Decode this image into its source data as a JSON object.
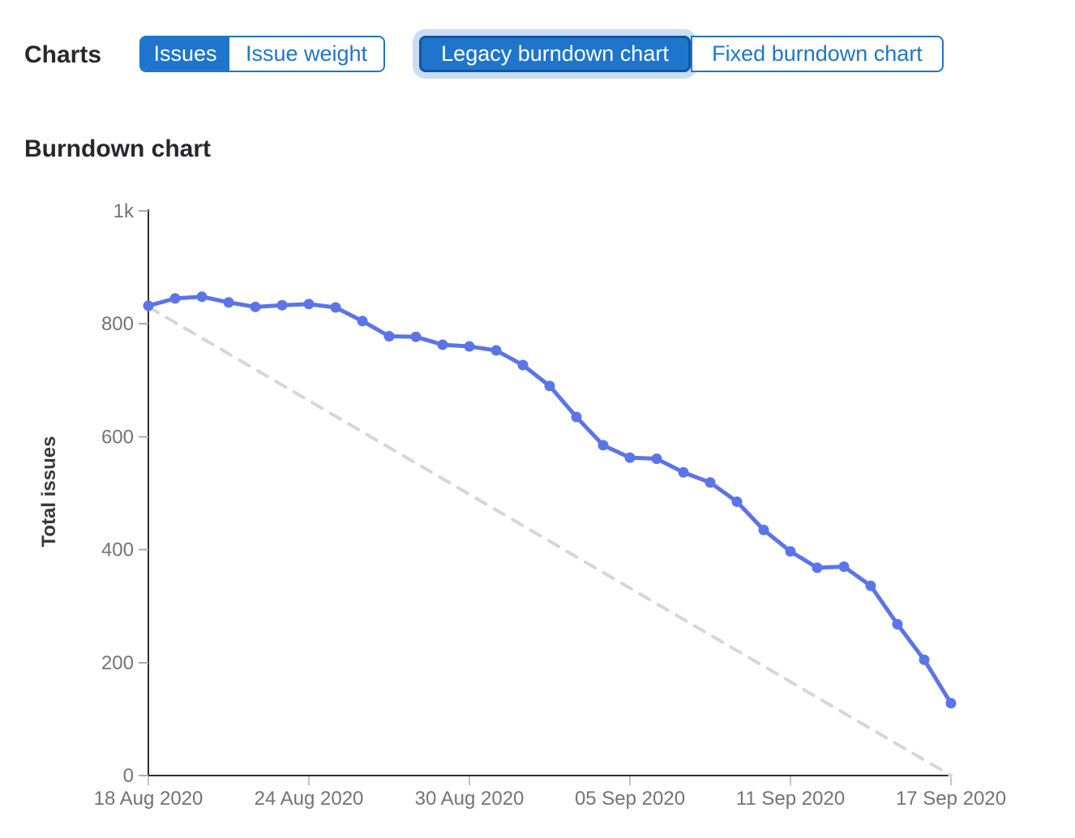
{
  "header": {
    "charts_label": "Charts",
    "metric_toggle": {
      "options": [
        {
          "label": "Issues",
          "selected": true
        },
        {
          "label": "Issue weight",
          "selected": false
        }
      ]
    },
    "type_toggle": {
      "options": [
        {
          "label": "Legacy burndown chart",
          "selected": true,
          "focused": true
        },
        {
          "label": "Fixed burndown chart",
          "selected": false
        }
      ]
    }
  },
  "section": {
    "title": "Burndown chart"
  },
  "colors": {
    "accent_blue": "#1f75cb",
    "selected_border": "#0d57a5",
    "focus_ring": "#c9ddf3",
    "series_line": "#5b74e8",
    "guideline": "#d6d6d6",
    "axis": "#2e2e33",
    "tick_text": "#737278",
    "heading_text": "#28272d",
    "ylabel_text": "#39383d"
  },
  "chart_data": {
    "type": "line",
    "title": "Burndown chart",
    "xlabel": "",
    "ylabel": "Total issues",
    "ylim": [
      0,
      1000
    ],
    "grid": false,
    "legend_position": "none",
    "y_ticks": [
      {
        "value": 0,
        "label": "0"
      },
      {
        "value": 200,
        "label": "200"
      },
      {
        "value": 400,
        "label": "400"
      },
      {
        "value": 600,
        "label": "600"
      },
      {
        "value": 800,
        "label": "800"
      },
      {
        "value": 1000,
        "label": "1k"
      }
    ],
    "x_tick_indices": [
      0,
      6,
      12,
      18,
      24,
      30
    ],
    "x_tick_labels": [
      "18 Aug 2020",
      "24 Aug 2020",
      "30 Aug 2020",
      "05 Sep 2020",
      "11 Sep 2020",
      "17 Sep 2020"
    ],
    "categories": [
      "18 Aug 2020",
      "19 Aug 2020",
      "20 Aug 2020",
      "21 Aug 2020",
      "22 Aug 2020",
      "23 Aug 2020",
      "24 Aug 2020",
      "25 Aug 2020",
      "26 Aug 2020",
      "27 Aug 2020",
      "28 Aug 2020",
      "29 Aug 2020",
      "30 Aug 2020",
      "31 Aug 2020",
      "01 Sep 2020",
      "02 Sep 2020",
      "03 Sep 2020",
      "04 Sep 2020",
      "05 Sep 2020",
      "06 Sep 2020",
      "07 Sep 2020",
      "08 Sep 2020",
      "09 Sep 2020",
      "10 Sep 2020",
      "11 Sep 2020",
      "12 Sep 2020",
      "13 Sep 2020",
      "14 Sep 2020",
      "15 Sep 2020",
      "16 Sep 2020",
      "17 Sep 2020"
    ],
    "series": [
      {
        "name": "Total issues",
        "style": "solid",
        "color": "#5b74e8",
        "values": [
          832,
          845,
          848,
          838,
          830,
          833,
          835,
          829,
          805,
          778,
          777,
          763,
          760,
          753,
          727,
          690,
          635,
          585,
          563,
          561,
          537,
          519,
          485,
          435,
          397,
          368,
          370,
          336,
          268,
          205,
          128
        ]
      },
      {
        "name": "Guideline",
        "style": "dashed",
        "color": "#d6d6d6",
        "start": 830,
        "end": 0
      }
    ]
  }
}
